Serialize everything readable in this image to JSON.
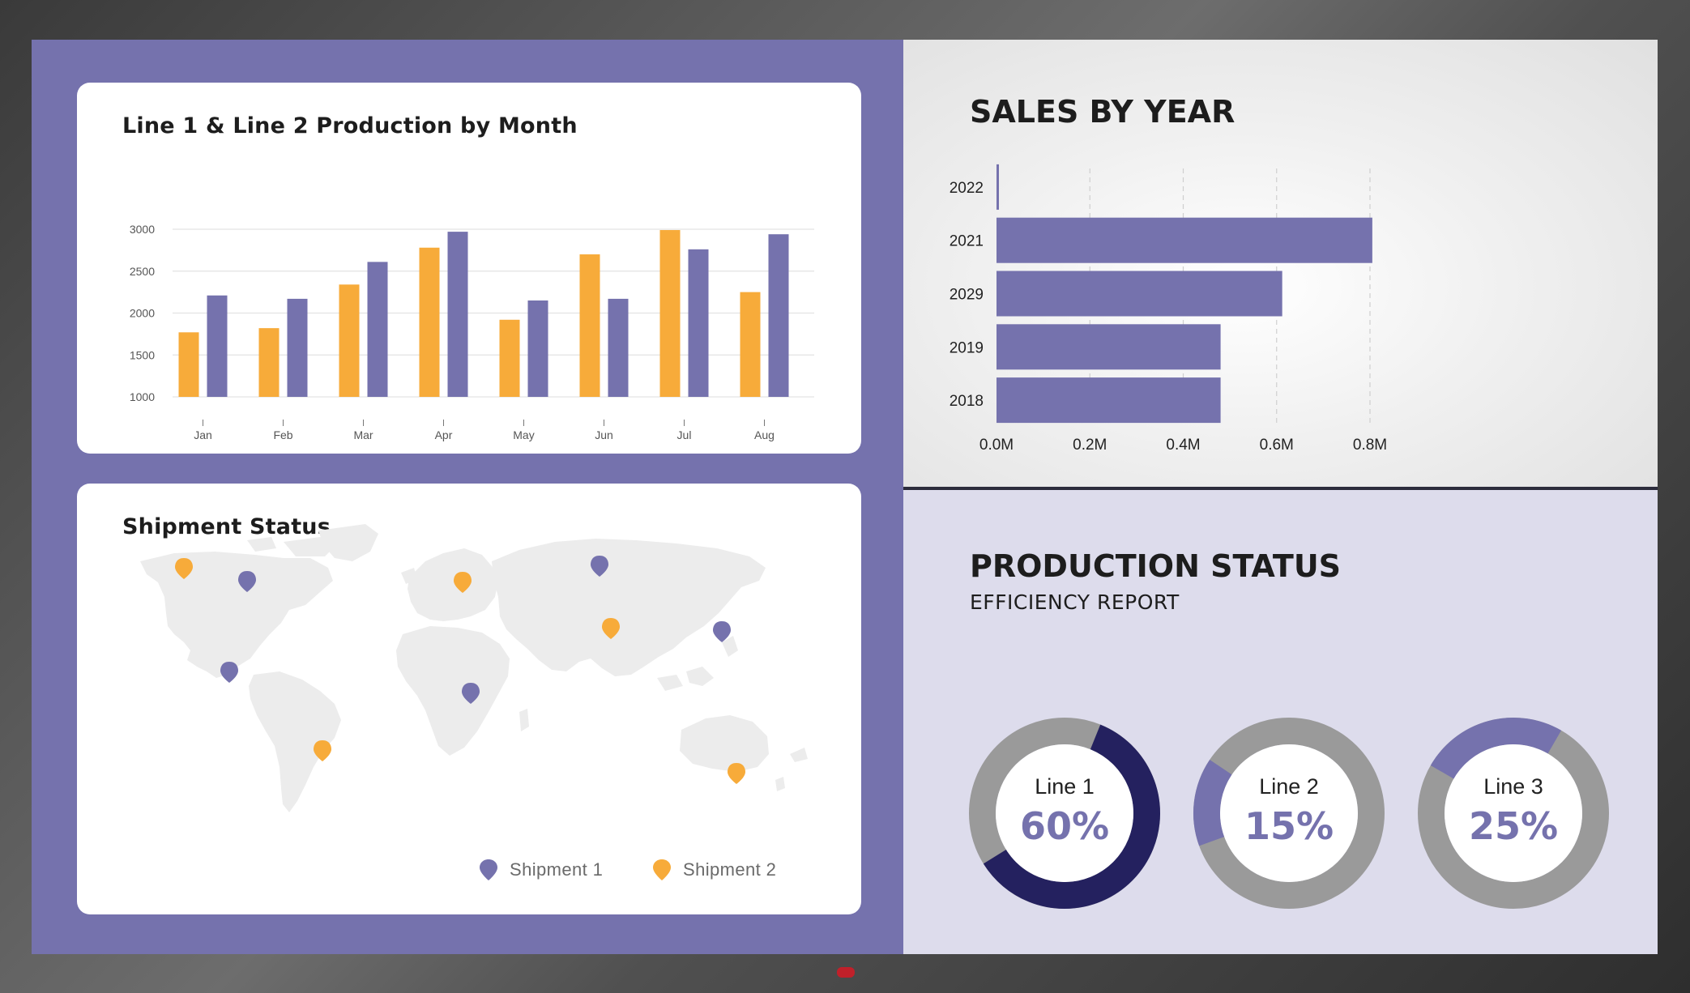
{
  "colors": {
    "primary": "#7572ad",
    "accent": "#f7ab3a",
    "dark": "#24215f",
    "gray": "#9a9a9a",
    "map": "#ececec",
    "panel_light": "#dddcec"
  },
  "production_card": {
    "title": "Line 1 & Line 2 Production by Month"
  },
  "shipment_card": {
    "title": "Shipment Status",
    "legend": [
      {
        "label": "Shipment 1",
        "icon": "map-pin-icon",
        "color": "#7572ad"
      },
      {
        "label": "Shipment 2",
        "icon": "map-pin-icon",
        "color": "#f7ab3a"
      }
    ],
    "pins": [
      {
        "shipment": "Shipment 2",
        "region": "Alaska"
      },
      {
        "shipment": "Shipment 1",
        "region": "Canada"
      },
      {
        "shipment": "Shipment 1",
        "region": "Central America"
      },
      {
        "shipment": "Shipment 2",
        "region": "Brazil"
      },
      {
        "shipment": "Shipment 2",
        "region": "Scandinavia"
      },
      {
        "shipment": "Shipment 1",
        "region": "Central Africa"
      },
      {
        "shipment": "Shipment 1",
        "region": "Northern Russia"
      },
      {
        "shipment": "Shipment 2",
        "region": "Central Asia"
      },
      {
        "shipment": "Shipment 1",
        "region": "Japan"
      },
      {
        "shipment": "Shipment 2",
        "region": "Australia"
      }
    ]
  },
  "sales": {
    "title": "SALES BY YEAR"
  },
  "production_status": {
    "title": "PRODUCTION STATUS",
    "subtitle": "EFFICIENCY REPORT",
    "lines": [
      {
        "label": "Line 1",
        "value_text": "60%",
        "value": 0.6,
        "color": "#24215f"
      },
      {
        "label": "Line 2",
        "value_text": "15%",
        "value": 0.15,
        "color": "#7572ad"
      },
      {
        "label": "Line 3",
        "value_text": "25%",
        "value": 0.25,
        "color": "#7572ad"
      }
    ]
  },
  "chart_data": [
    {
      "type": "bar",
      "title": "Line 1 & Line 2 Production by Month",
      "categories": [
        "Jan",
        "Feb",
        "Mar",
        "Apr",
        "May",
        "Jun",
        "Jul",
        "Aug"
      ],
      "series": [
        {
          "values": [
            1770,
            1820,
            2340,
            2780,
            1920,
            2700,
            2990,
            2250
          ],
          "color": "#f7ab3a"
        },
        {
          "values": [
            2210,
            2170,
            2610,
            2970,
            2150,
            2170,
            2760,
            2940
          ],
          "color": "#7572ad"
        }
      ],
      "ylim": [
        1000,
        3000
      ],
      "yticks": [
        1000,
        1500,
        2000,
        2500,
        3000
      ],
      "ytick_labels": [
        "1000",
        "1500",
        "2000",
        "2500",
        "3000"
      ],
      "grid": true,
      "xlabel": "",
      "ylabel": ""
    },
    {
      "type": "bar",
      "orientation": "horizontal",
      "title": "SALES BY YEAR",
      "categories": [
        "2022",
        "2021",
        "2029",
        "2019",
        "2018"
      ],
      "values": [
        0.005,
        0.805,
        0.612,
        0.48,
        0.48
      ],
      "xlim": [
        0,
        0.8
      ],
      "xticks": [
        0,
        0.2,
        0.4,
        0.6,
        0.8
      ],
      "xtick_labels": [
        "0.0M",
        "0.2M",
        "0.4M",
        "0.6M",
        "0.8M"
      ],
      "color": "#7572ad",
      "grid": true,
      "xlabel": "",
      "ylabel": ""
    }
  ]
}
